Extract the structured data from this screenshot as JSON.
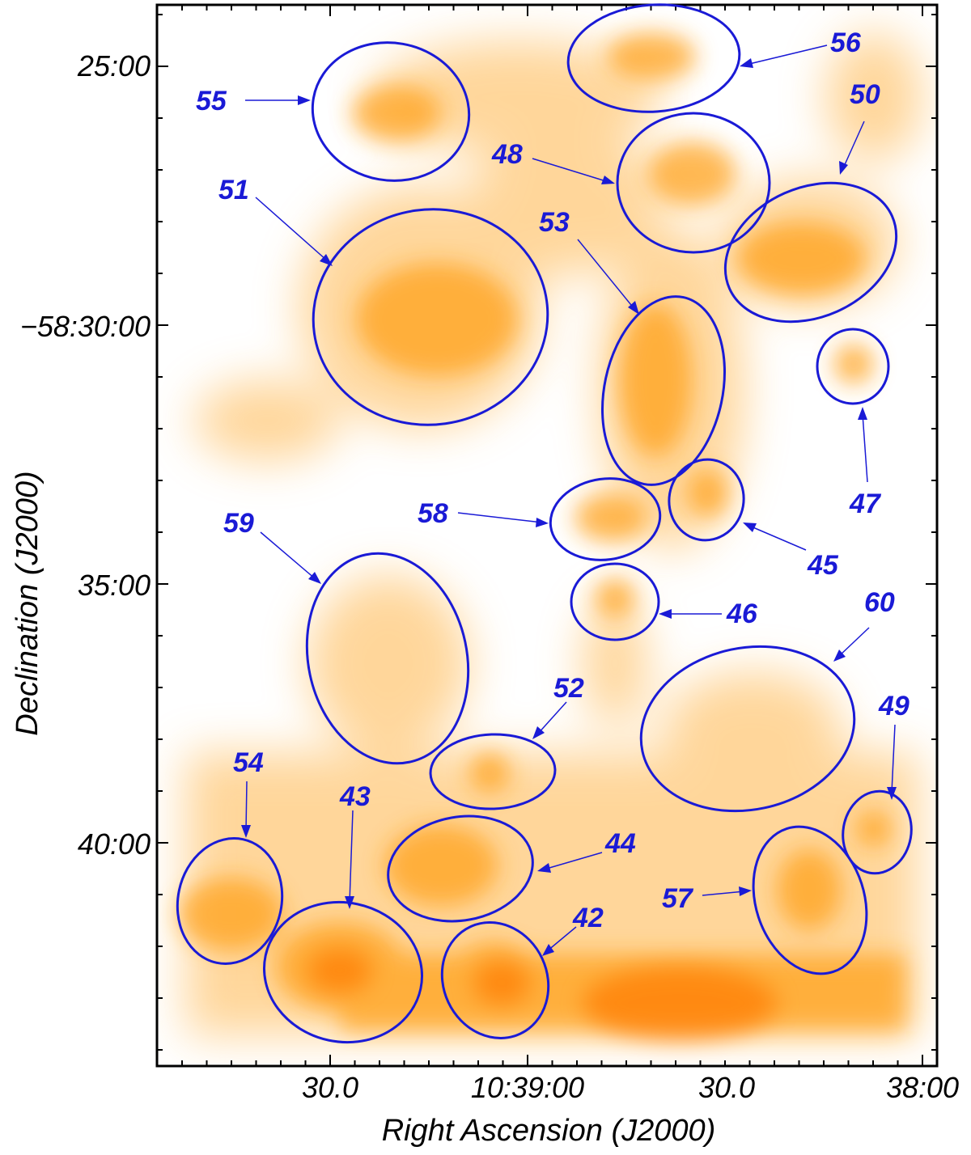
{
  "colors": {
    "ellipse": "#1a1ad6",
    "label": "#1a1ad6",
    "emission": "#ff9a00",
    "emission_peak": "#ff6a00"
  },
  "axes": {
    "x_title": "Right Ascension (J2000)",
    "y_title": "Declination (J2000)",
    "x_ticks": [
      "30.0",
      "10:39:00",
      "30.0",
      "38:00"
    ],
    "y_ticks": [
      "25:00",
      "−58:30:00",
      "35:00",
      "40:00"
    ]
  },
  "regions": [
    "55",
    "56",
    "50",
    "48",
    "51",
    "53",
    "47",
    "58",
    "45",
    "59",
    "46",
    "60",
    "52",
    "49",
    "54",
    "43",
    "44",
    "57",
    "42"
  ]
}
